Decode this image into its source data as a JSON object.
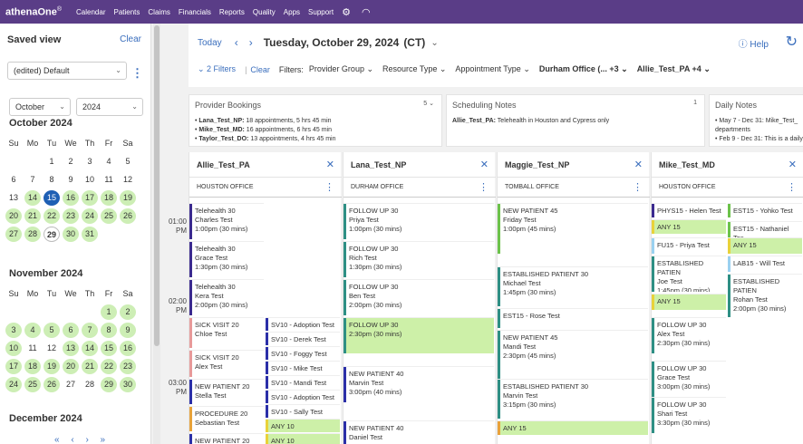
{
  "app": {
    "brand": "athenaOne",
    "brand_mark": "®"
  },
  "nav": [
    "Calendar",
    "Patients",
    "Claims",
    "Financials",
    "Reports",
    "Quality",
    "Apps",
    "Support"
  ],
  "nav_icons": [
    "gear-icon",
    "gauge-icon"
  ],
  "sidebar": {
    "title": "Saved view",
    "clear": "Clear",
    "view_value": "(edited) Default",
    "month_select": "October",
    "year_select": "2024",
    "dow": [
      "Su",
      "Mo",
      "Tu",
      "We",
      "Th",
      "Fr",
      "Sa"
    ],
    "months": [
      {
        "title": "October 2024",
        "lead": 2,
        "days": 31,
        "green": [
          14,
          16,
          17,
          18,
          19,
          20,
          21,
          22,
          23,
          24,
          25,
          26,
          27,
          28,
          30,
          31
        ],
        "selected": 15,
        "today": 29
      },
      {
        "title": "November 2024",
        "lead": 5,
        "days": 30,
        "green": [
          1,
          2,
          3,
          4,
          5,
          6,
          7,
          8,
          9,
          10,
          13,
          14,
          15,
          16,
          17,
          18,
          19,
          20,
          21,
          22,
          23,
          24,
          25,
          26,
          29,
          30
        ],
        "selected": null,
        "today": null
      },
      {
        "title": "December 2024",
        "lead": 0,
        "days": 0,
        "green": [],
        "selected": null,
        "today": null
      }
    ],
    "pager": "« ‹ › »"
  },
  "toolbar": {
    "today": "Today",
    "prev": "‹",
    "next": "›",
    "date": "Tuesday, October 29, 2024",
    "tz": "(CT)",
    "caret": "⌄",
    "help": "Help",
    "refresh": "↻",
    "filters_count": "2 Filters",
    "clear": "Clear",
    "filters_label": "Filters:",
    "filters": [
      {
        "label": "Provider Group",
        "bold": false
      },
      {
        "label": "Resource Type",
        "bold": false
      },
      {
        "label": "Appointment Type",
        "bold": false
      },
      {
        "label": "Durham Office (... +3",
        "bold": true
      },
      {
        "label": "Allie_Test_PA +4",
        "bold": true
      }
    ]
  },
  "cards": [
    {
      "title": "Provider Bookings",
      "count": "5",
      "lines": [
        {
          "b": "Lana_Test_NP:",
          "t": " 18 appointments, 5 hrs 45 min"
        },
        {
          "b": "Mike_Test_MD:",
          "t": " 16 appointments, 6 hrs 45 min"
        },
        {
          "b": "Taylor_Test_DO:",
          "t": " 13 appointments, 4 hrs 45 min"
        }
      ]
    },
    {
      "title": "Scheduling Notes",
      "count": "1",
      "lines": [
        {
          "b": "Allie_Test_PA:",
          "t": " Telehealth in Houston and Cypress only"
        }
      ]
    },
    {
      "title": "Daily Notes",
      "count": "",
      "lines": [
        {
          "b": "",
          "t": "• May 7 - Dec 31: Mike_Test_"
        },
        {
          "b": "",
          "t": "   departments"
        },
        {
          "b": "",
          "t": "• Feb 9 - Dec 31: This is a daily"
        }
      ]
    }
  ],
  "times": [
    {
      "h": "01:00",
      "ap": "PM"
    },
    {
      "h": "02:00",
      "ap": "PM"
    },
    {
      "h": "03:00",
      "ap": "PM"
    }
  ],
  "columns": [
    {
      "provider": "Allie_Test_PA",
      "office": "HOUSTON OFFICE",
      "appts": [
        {
          "col": 0,
          "lines": [
            "Telehealth 30",
            "Charles Test",
            "1:00pm (30 mins)"
          ],
          "color": "#3b2a8f",
          "bg": "#fff"
        },
        {
          "col": 0,
          "lines": [
            "Telehealth 30",
            "Grace Test",
            "1:30pm (30 mins)"
          ],
          "color": "#3b2a8f",
          "bg": "#fff"
        },
        {
          "col": 0,
          "lines": [
            "Telehealth 30",
            "Kera Test",
            "2:00pm (30 mins)"
          ],
          "color": "#3b2a8f",
          "bg": "#fff"
        },
        {
          "col": 0,
          "lines": [
            "SICK VISIT 20",
            "Chloe Test"
          ],
          "color": "#e89a9a",
          "bg": "#fff"
        },
        {
          "col": 0,
          "lines": [
            "SICK VISIT 20",
            "Alex Test"
          ],
          "color": "#e89a9a",
          "bg": "#fff"
        },
        {
          "col": 0,
          "lines": [
            "NEW PATIENT 20",
            "Stella Test"
          ],
          "color": "#2b2fa8",
          "bg": "#fff"
        },
        {
          "col": 0,
          "lines": [
            "PROCEDURE 20",
            "Sebastian Test"
          ],
          "color": "#e8a23a",
          "bg": "#fff"
        },
        {
          "col": 0,
          "lines": [
            "NEW PATIENT 20"
          ],
          "color": "#2b2fa8",
          "bg": "#fff"
        },
        {
          "col": 1,
          "lines": [
            "SV10 - Adoption Test"
          ],
          "color": "#2b2fa8",
          "bg": "#fff"
        },
        {
          "col": 1,
          "lines": [
            "SV10 - Derek Test"
          ],
          "color": "#2b2fa8",
          "bg": "#fff"
        },
        {
          "col": 1,
          "lines": [
            "SV10 - Foggy Test"
          ],
          "color": "#2b2fa8",
          "bg": "#fff"
        },
        {
          "col": 1,
          "lines": [
            "SV10 - Mike Test"
          ],
          "color": "#2b2fa8",
          "bg": "#fff"
        },
        {
          "col": 1,
          "lines": [
            "SV10 - Mandi Test"
          ],
          "color": "#2b2fa8",
          "bg": "#fff"
        },
        {
          "col": 1,
          "lines": [
            "SV10 - Adoption Test"
          ],
          "color": "#2b2fa8",
          "bg": "#fff"
        },
        {
          "col": 1,
          "lines": [
            "SV10 - Sally Test"
          ],
          "color": "#2b2fa8",
          "bg": "#fff"
        },
        {
          "col": 1,
          "lines": [
            "ANY 10"
          ],
          "color": "#e8d23a",
          "bg": "#cdf0a8"
        },
        {
          "col": 1,
          "lines": [
            "ANY 10"
          ],
          "color": "#e8d23a",
          "bg": "#cdf0a8"
        }
      ]
    },
    {
      "provider": "Lana_Test_NP",
      "office": "DURHAM OFFICE",
      "appts": [
        {
          "col": 0,
          "lines": [
            "FOLLOW UP 30",
            "Priya Test",
            "1:00pm (30 mins)"
          ],
          "color": "#2e8f84",
          "bg": "#fff"
        },
        {
          "col": 0,
          "lines": [
            "FOLLOW UP 30",
            "Rich Test",
            "1:30pm (30 mins)"
          ],
          "color": "#2e8f84",
          "bg": "#fff"
        },
        {
          "col": 0,
          "lines": [
            "FOLLOW UP 30",
            "Ben Test",
            "2:00pm (30 mins)"
          ],
          "color": "#2e8f84",
          "bg": "#fff"
        },
        {
          "col": 0,
          "lines": [
            "FOLLOW UP 30",
            "2:30pm (30 mins)"
          ],
          "color": "#2e8f84",
          "bg": "#cdf0a8"
        },
        {
          "col": 0,
          "lines": [
            "NEW PATIENT 40",
            "Marvin Test",
            "3:00pm (40 mins)"
          ],
          "color": "#2b2fa8",
          "bg": "#fff"
        },
        {
          "col": 0,
          "lines": [
            "NEW PATIENT 40",
            "Daniel Test"
          ],
          "color": "#2b2fa8",
          "bg": "#fff"
        }
      ]
    },
    {
      "provider": "Maggie_Test_NP",
      "office": "TOMBALL OFFICE",
      "appts": [
        {
          "col": 0,
          "lines": [
            "NEW PATIENT 45",
            "Friday Test",
            "1:00pm (45 mins)"
          ],
          "color": "#6cc24a",
          "bg": "#fff"
        },
        {
          "col": 0,
          "lines": [
            "ESTABLISHED PATIENT 30",
            "Michael Test",
            "1:45pm (30 mins)"
          ],
          "color": "#2e8f84",
          "bg": "#fff"
        },
        {
          "col": 0,
          "lines": [
            "EST15 - Rose Test"
          ],
          "color": "#2e8f84",
          "bg": "#fff"
        },
        {
          "col": 0,
          "lines": [
            "NEW PATIENT 45",
            "Mandi Test",
            "2:30pm (45 mins)"
          ],
          "color": "#2e8f84",
          "bg": "#fff"
        },
        {
          "col": 0,
          "lines": [
            "ESTABLISHED PATIENT 30",
            "Marvin Test",
            "3:15pm (30 mins)"
          ],
          "color": "#2e8f84",
          "bg": "#fff"
        },
        {
          "col": 0,
          "lines": [
            "ANY 15"
          ],
          "color": "#e8a23a",
          "bg": "#cdf0a8"
        }
      ]
    },
    {
      "provider": "Mike_Test_MD",
      "office": "HOUSTON OFFICE",
      "appts": [
        {
          "col": 0,
          "lines": [
            "PHYS15 - Helen Test"
          ],
          "color": "#3b2a8f",
          "bg": "#fff"
        },
        {
          "col": 0,
          "lines": [
            "ANY 15"
          ],
          "color": "#e8d23a",
          "bg": "#cdf0a8"
        },
        {
          "col": 0,
          "lines": [
            "FU15 - Priya Test"
          ],
          "color": "#9ad1f0",
          "bg": "#fff"
        },
        {
          "col": 0,
          "lines": [
            "ESTABLISHED PATIEN",
            "Joe Test",
            "1:45pm (30 mins)"
          ],
          "color": "#2e8f84",
          "bg": "#fff"
        },
        {
          "col": 0,
          "lines": [
            "ANY 15"
          ],
          "color": "#e8d23a",
          "bg": "#cdf0a8"
        },
        {
          "col": 0,
          "lines": [
            "FOLLOW UP 30",
            "Alex Test",
            "2:30pm (30 mins)"
          ],
          "color": "#2e8f84",
          "bg": "#fff"
        },
        {
          "col": 0,
          "lines": [
            "FOLLOW UP 30",
            "Grace Test",
            "3:00pm (30 mins)"
          ],
          "color": "#2e8f84",
          "bg": "#fff"
        },
        {
          "col": 0,
          "lines": [
            "FOLLOW UP 30",
            "Shari Test",
            "3:30pm (30 mins)"
          ],
          "color": "#2e8f84",
          "bg": "#fff"
        },
        {
          "col": 1,
          "lines": [
            "EST15 - Yohko Test"
          ],
          "color": "#6cc24a",
          "bg": "#fff"
        },
        {
          "col": 1,
          "lines": [
            "EST15 - Nathaniel Tes"
          ],
          "color": "#6cc24a",
          "bg": "#fff"
        },
        {
          "col": 1,
          "lines": [
            "ANY 15"
          ],
          "color": "#e8d23a",
          "bg": "#cdf0a8"
        },
        {
          "col": 1,
          "lines": [
            "LAB15 - Will Test"
          ],
          "color": "#9ad1f0",
          "bg": "#fff"
        },
        {
          "col": 1,
          "lines": [
            "ESTABLISHED PATIEN",
            "Rohan Test",
            "2:00pm (30 mins)"
          ],
          "color": "#2e8f84",
          "bg": "#fff"
        }
      ]
    }
  ]
}
